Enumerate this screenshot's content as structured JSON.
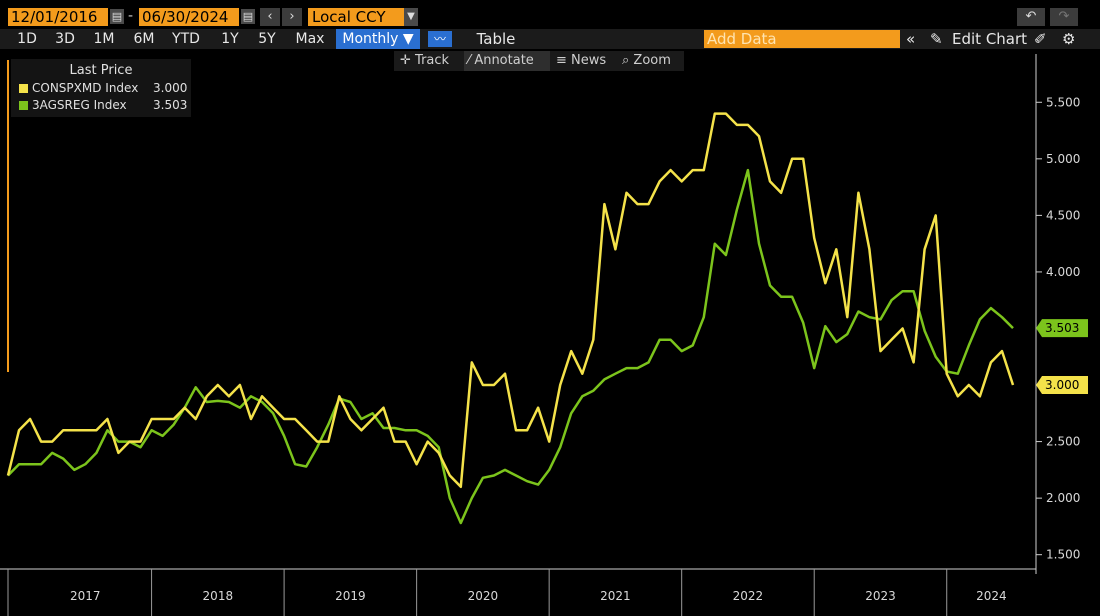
{
  "toolbar": {
    "start_date": "12/01/2016",
    "end_date": "06/30/2024",
    "date_separator": "-",
    "currency": "Local CCY",
    "periods": [
      "1D",
      "3D",
      "1M",
      "6M",
      "YTD",
      "1Y",
      "5Y",
      "Max"
    ],
    "frequency": "Monthly ▼",
    "table_label": "Table",
    "add_data_placeholder": "Add Data",
    "edit_chart_label": "Edit Chart"
  },
  "tools": {
    "track": "Track",
    "annotate": "Annotate",
    "news": "News",
    "zoom": "Zoom"
  },
  "legend": {
    "header": "Last Price",
    "entries": [
      {
        "name": "CONSPXMD Index",
        "value": "3.000",
        "color": "#f4e24a"
      },
      {
        "name": "3AGSREG Index",
        "value": "3.503",
        "color": "#7cc41c"
      }
    ]
  },
  "colors": {
    "series1": "#f4e24a",
    "series2": "#7cc41c",
    "accent": "#f39b1c",
    "selected": "#2a6fd1"
  },
  "chart_data": {
    "type": "line",
    "x_start": "2016-12",
    "x_end": "2024-06",
    "frequency": "monthly",
    "xlabel": "",
    "ylabel": "",
    "ylim": [
      1.4,
      5.75
    ],
    "y_ticks": [
      "1.500",
      "2.000",
      "2.500",
      "3.000",
      "3.500",
      "4.000",
      "4.500",
      "5.000",
      "5.500"
    ],
    "x_tick_labels": [
      "2017",
      "2018",
      "2019",
      "2020",
      "2021",
      "2022",
      "2023",
      "2024"
    ],
    "last_value_tags": [
      "3.503",
      "3.000"
    ],
    "series": [
      {
        "name": "CONSPXMD Index",
        "values": [
          2.2,
          2.6,
          2.7,
          2.5,
          2.5,
          2.6,
          2.6,
          2.6,
          2.6,
          2.7,
          2.4,
          2.5,
          2.5,
          2.7,
          2.7,
          2.7,
          2.8,
          2.7,
          2.9,
          3.0,
          2.9,
          3.0,
          2.7,
          2.9,
          2.8,
          2.7,
          2.7,
          2.6,
          2.5,
          2.5,
          2.9,
          2.7,
          2.6,
          2.7,
          2.8,
          2.5,
          2.5,
          2.3,
          2.5,
          2.4,
          2.2,
          2.1,
          3.2,
          3.0,
          3.0,
          3.1,
          2.6,
          2.6,
          2.8,
          2.5,
          3.0,
          3.3,
          3.1,
          3.4,
          4.6,
          4.2,
          4.7,
          4.6,
          4.6,
          4.8,
          4.9,
          4.8,
          4.9,
          4.9,
          5.4,
          5.4,
          5.3,
          5.3,
          5.2,
          4.8,
          4.7,
          5.0,
          5.0,
          4.3,
          3.9,
          4.2,
          3.6,
          4.7,
          4.2,
          3.3,
          3.4,
          3.5,
          3.2,
          4.2,
          4.5,
          3.1,
          2.9,
          3.0,
          2.9,
          3.2,
          3.3,
          3.0
        ]
      },
      {
        "name": "3AGSREG Index",
        "values": [
          2.2,
          2.3,
          2.3,
          2.3,
          2.4,
          2.35,
          2.25,
          2.3,
          2.4,
          2.6,
          2.5,
          2.5,
          2.45,
          2.6,
          2.55,
          2.65,
          2.8,
          2.98,
          2.85,
          2.86,
          2.85,
          2.8,
          2.9,
          2.85,
          2.75,
          2.55,
          2.3,
          2.28,
          2.45,
          2.65,
          2.88,
          2.85,
          2.7,
          2.75,
          2.62,
          2.62,
          2.6,
          2.6,
          2.55,
          2.45,
          2.0,
          1.78,
          2.0,
          2.18,
          2.2,
          2.25,
          2.2,
          2.15,
          2.12,
          2.25,
          2.45,
          2.75,
          2.9,
          2.95,
          3.05,
          3.1,
          3.15,
          3.15,
          3.2,
          3.4,
          3.4,
          3.3,
          3.35,
          3.6,
          4.25,
          4.15,
          4.55,
          4.9,
          4.25,
          3.88,
          3.78,
          3.78,
          3.55,
          3.15,
          3.52,
          3.38,
          3.45,
          3.65,
          3.6,
          3.58,
          3.75,
          3.83,
          3.83,
          3.48,
          3.25,
          3.12,
          3.1,
          3.35,
          3.58,
          3.68,
          3.6,
          3.503
        ]
      }
    ]
  }
}
